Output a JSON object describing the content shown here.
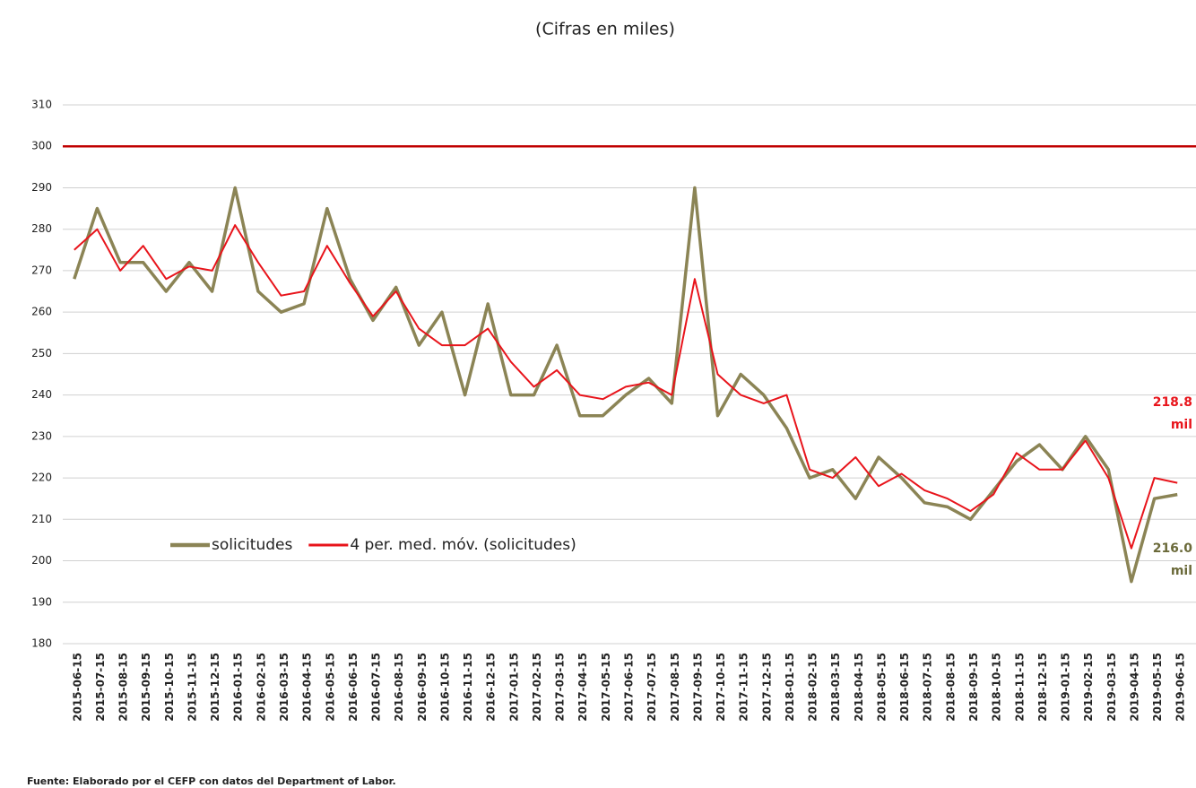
{
  "chart_data": {
    "type": "line",
    "subtitle": "(Cifras en miles)",
    "source": "Fuente: Elaborado por el CEFP con datos del Department of Labor.",
    "categories": [
      "2015-06-15",
      "2015-07-15",
      "2015-08-15",
      "2015-09-15",
      "2015-10-15",
      "2015-11-15",
      "2015-12-15",
      "2016-01-15",
      "2016-02-15",
      "2016-03-15",
      "2016-04-15",
      "2016-05-15",
      "2016-06-15",
      "2016-07-15",
      "2016-08-15",
      "2016-09-15",
      "2016-10-15",
      "2016-11-15",
      "2016-12-15",
      "2017-01-15",
      "2017-02-15",
      "2017-03-15",
      "2017-04-15",
      "2017-05-15",
      "2017-06-15",
      "2017-07-15",
      "2017-08-15",
      "2017-09-15",
      "2017-10-15",
      "2017-11-15",
      "2017-12-15",
      "2018-01-15",
      "2018-02-15",
      "2018-03-15",
      "2018-04-15",
      "2018-05-15",
      "2018-06-15",
      "2018-07-15",
      "2018-08-15",
      "2018-09-15",
      "2018-10-15",
      "2018-11-15",
      "2018-12-15",
      "2019-01-15",
      "2019-02-15",
      "2019-03-15",
      "2019-04-15",
      "2019-05-15",
      "2019-06-15"
    ],
    "series": [
      {
        "name": "solicitudes",
        "color": "#8b8455",
        "width": 3.5,
        "values": [
          268,
          285,
          272,
          272,
          265,
          272,
          265,
          290,
          265,
          260,
          262,
          285,
          268,
          258,
          266,
          252,
          260,
          240,
          262,
          240,
          240,
          252,
          235,
          235,
          240,
          244,
          238,
          290,
          235,
          245,
          240,
          232,
          220,
          222,
          215,
          225,
          220,
          214,
          213,
          210,
          217,
          224,
          228,
          222,
          230,
          222,
          195,
          215,
          216
        ]
      },
      {
        "name": "4 per. med. móv. (solicitudes)",
        "color": "#e8141b",
        "width": 2,
        "values": [
          275,
          280,
          270,
          276,
          268,
          271,
          270,
          281,
          272,
          264,
          265,
          276,
          267,
          259,
          265,
          256,
          252,
          252,
          256,
          248,
          242,
          246,
          240,
          239,
          242,
          243,
          240,
          268,
          245,
          240,
          238,
          240,
          222,
          220,
          225,
          218,
          221,
          217,
          215,
          212,
          216,
          226,
          222,
          222,
          229,
          220,
          203,
          220,
          218.8
        ]
      }
    ],
    "reference_line": {
      "value": 300,
      "color": "#c00000"
    },
    "annotations": [
      {
        "lines": [
          "218.8",
          "mil"
        ],
        "color": "#e8141b"
      },
      {
        "lines": [
          "216.0",
          "mil"
        ],
        "color": "#6b6a3a"
      }
    ],
    "ylim": [
      180,
      310
    ],
    "yticks": [
      180,
      190,
      200,
      210,
      220,
      230,
      240,
      250,
      260,
      270,
      280,
      290,
      300,
      310
    ],
    "grid": true,
    "legend_position": "lower-left"
  }
}
